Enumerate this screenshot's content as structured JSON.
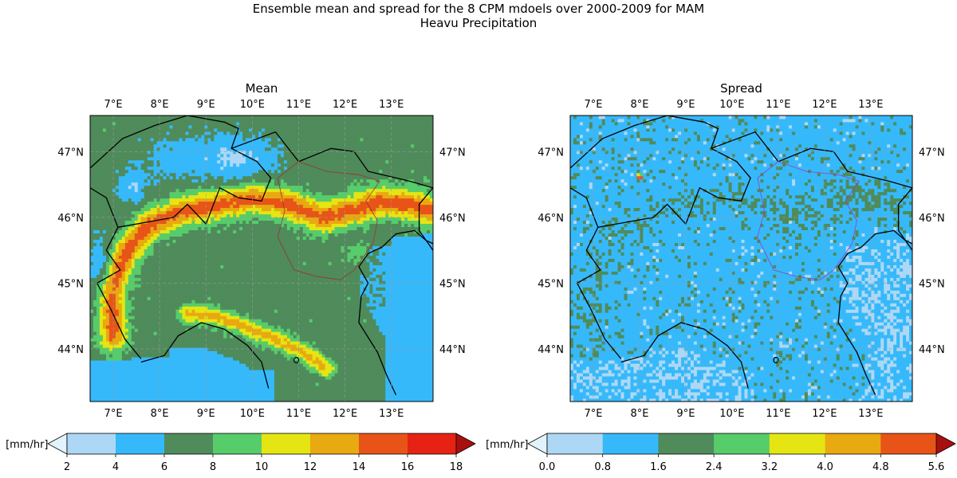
{
  "figure": {
    "title_line1": "Ensemble mean and spread for the 8 CPM mdoels over 2000-2009 for MAM",
    "title_line2": "Heavu Precipitation"
  },
  "chart_data": [
    {
      "type": "heatmap",
      "title": "Mean",
      "lon_ticks": [
        "7°E",
        "8°E",
        "9°E",
        "10°E",
        "11°E",
        "12°E",
        "13°E"
      ],
      "lon_values": [
        7,
        8,
        9,
        10,
        11,
        12,
        13
      ],
      "lat_ticks": [
        "44°N",
        "45°N",
        "46°N",
        "47°N"
      ],
      "lat_values": [
        44,
        45,
        46,
        47
      ],
      "xlim": [
        6.5,
        13.9
      ],
      "ylim": [
        43.2,
        47.55
      ],
      "grid": true,
      "colorbar": {
        "label": "[mm/hr]",
        "ticks": [
          "2",
          "4",
          "6",
          "8",
          "10",
          "12",
          "14",
          "16",
          "18"
        ],
        "colors": [
          "#add8f5",
          "#36b9fb",
          "#4f8b5b",
          "#57cc6a",
          "#e5e513",
          "#e8a911",
          "#e85418",
          "#e62215"
        ],
        "under_color": "#e3f3fd",
        "over_color": "#a81010"
      }
    },
    {
      "type": "heatmap",
      "title": "Spread",
      "lon_ticks": [
        "7°E",
        "8°E",
        "9°E",
        "10°E",
        "11°E",
        "12°E",
        "13°E"
      ],
      "lon_values": [
        7,
        8,
        9,
        10,
        11,
        12,
        13
      ],
      "lat_ticks": [
        "44°N",
        "45°N",
        "46°N",
        "47°N"
      ],
      "lat_values": [
        44,
        45,
        46,
        47
      ],
      "xlim": [
        6.5,
        13.9
      ],
      "ylim": [
        43.2,
        47.55
      ],
      "grid": true,
      "colorbar": {
        "label": "[mm/hr]",
        "ticks": [
          "0.0",
          "0.8",
          "1.6",
          "2.4",
          "3.2",
          "4.0",
          "4.8",
          "5.6"
        ],
        "colors": [
          "#add8f5",
          "#36b9fb",
          "#4f8b5b",
          "#57cc6a",
          "#e5e513",
          "#e8a911",
          "#e85418"
        ],
        "under_color": "#e3f3fd",
        "over_color": "#a81010"
      }
    }
  ]
}
